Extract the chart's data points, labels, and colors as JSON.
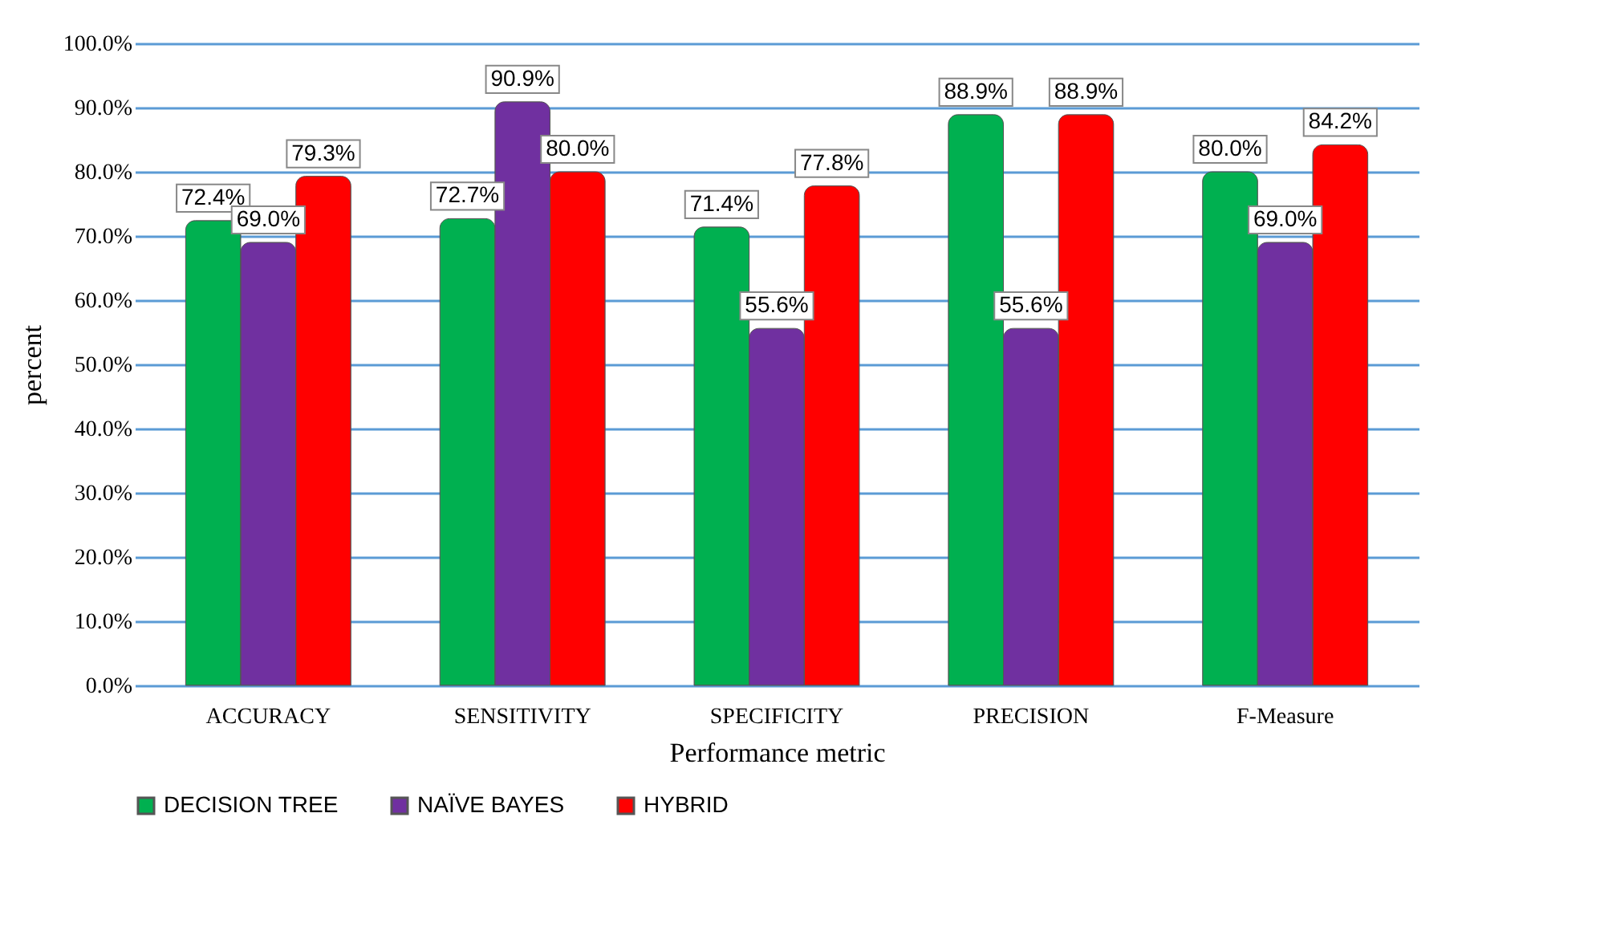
{
  "chart_data": {
    "type": "bar",
    "xlabel": "Performance metric",
    "ylabel": "percent",
    "categories": [
      "ACCURACY",
      "SENSITIVITY",
      "SPECIFICITY",
      "PRECISION",
      "F-Measure"
    ],
    "series": [
      {
        "name": "DECISION TREE",
        "color": "#00b050",
        "values": [
          72.4,
          72.7,
          71.4,
          88.9,
          80.0
        ],
        "value_labels": [
          "72.4%",
          "72.7%",
          "71.4%",
          "88.9%",
          "80.0%"
        ]
      },
      {
        "name": "NAÏVE BAYES",
        "color": "#7030a0",
        "values": [
          69.0,
          90.9,
          55.6,
          55.6,
          69.0
        ],
        "value_labels": [
          "69.0%",
          "90.9%",
          "55.6%",
          "55.6%",
          "69.0%"
        ]
      },
      {
        "name": "HYBRID",
        "color": "#ff0000",
        "values": [
          79.3,
          80.0,
          77.8,
          88.9,
          84.2
        ],
        "value_labels": [
          "79.3%",
          "80.0%",
          "77.8%",
          "88.9%",
          "84.2%"
        ]
      }
    ],
    "ylim": [
      0,
      100
    ],
    "yticks": [
      {
        "value": 0,
        "label": "0.0%"
      },
      {
        "value": 10,
        "label": "10.0%"
      },
      {
        "value": 20,
        "label": "20.0%"
      },
      {
        "value": 30,
        "label": "30.0%"
      },
      {
        "value": 40,
        "label": "40.0%"
      },
      {
        "value": 50,
        "label": "50.0%"
      },
      {
        "value": 60,
        "label": "60.0%"
      },
      {
        "value": 70,
        "label": "70.0%"
      },
      {
        "value": 80,
        "label": "80.0%"
      },
      {
        "value": 90,
        "label": "90.0%"
      },
      {
        "value": 100,
        "label": "100.0%"
      }
    ],
    "grid": "y",
    "legend": "bottom"
  }
}
